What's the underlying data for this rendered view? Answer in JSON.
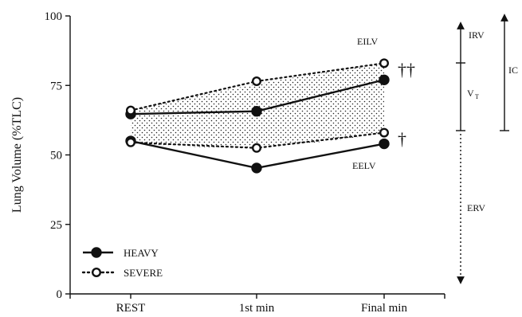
{
  "chart_data": {
    "type": "line",
    "ylabel": "Lung Volume (%TLC)",
    "ylim": [
      0,
      100
    ],
    "yticks": [
      0,
      25,
      50,
      75,
      100
    ],
    "categories": [
      "REST",
      "1st min",
      "Final min"
    ],
    "series": [
      {
        "name": "HEAVY",
        "kind": "EILV",
        "style": "solid",
        "marker": "filled",
        "values": [
          64.7,
          65.7,
          77.0
        ]
      },
      {
        "name": "HEAVY",
        "kind": "EELV",
        "style": "solid",
        "marker": "filled",
        "values": [
          55.0,
          45.3,
          54.0
        ]
      },
      {
        "name": "SEVERE",
        "kind": "EILV",
        "style": "dotted",
        "marker": "open",
        "values": [
          66.0,
          76.5,
          83.0
        ]
      },
      {
        "name": "SEVERE",
        "kind": "EELV",
        "style": "dotted",
        "marker": "open",
        "values": [
          54.5,
          52.5,
          58.0
        ]
      }
    ],
    "legend": {
      "placement": "bottom-left",
      "entries": [
        "HEAVY",
        "SEVERE"
      ]
    },
    "annotations": {
      "eilv": "EILV",
      "eelv": "EELV",
      "dagger_double": "††",
      "dagger_single": "†",
      "irv": "IRV",
      "vt": "V",
      "vt_sub": "T",
      "ic": "IC",
      "erv": "ERV"
    },
    "shading": "stippled region between SEVERE EILV and SEVERE EELV",
    "colors": {
      "ink": "#111111",
      "background": "#ffffff"
    }
  }
}
